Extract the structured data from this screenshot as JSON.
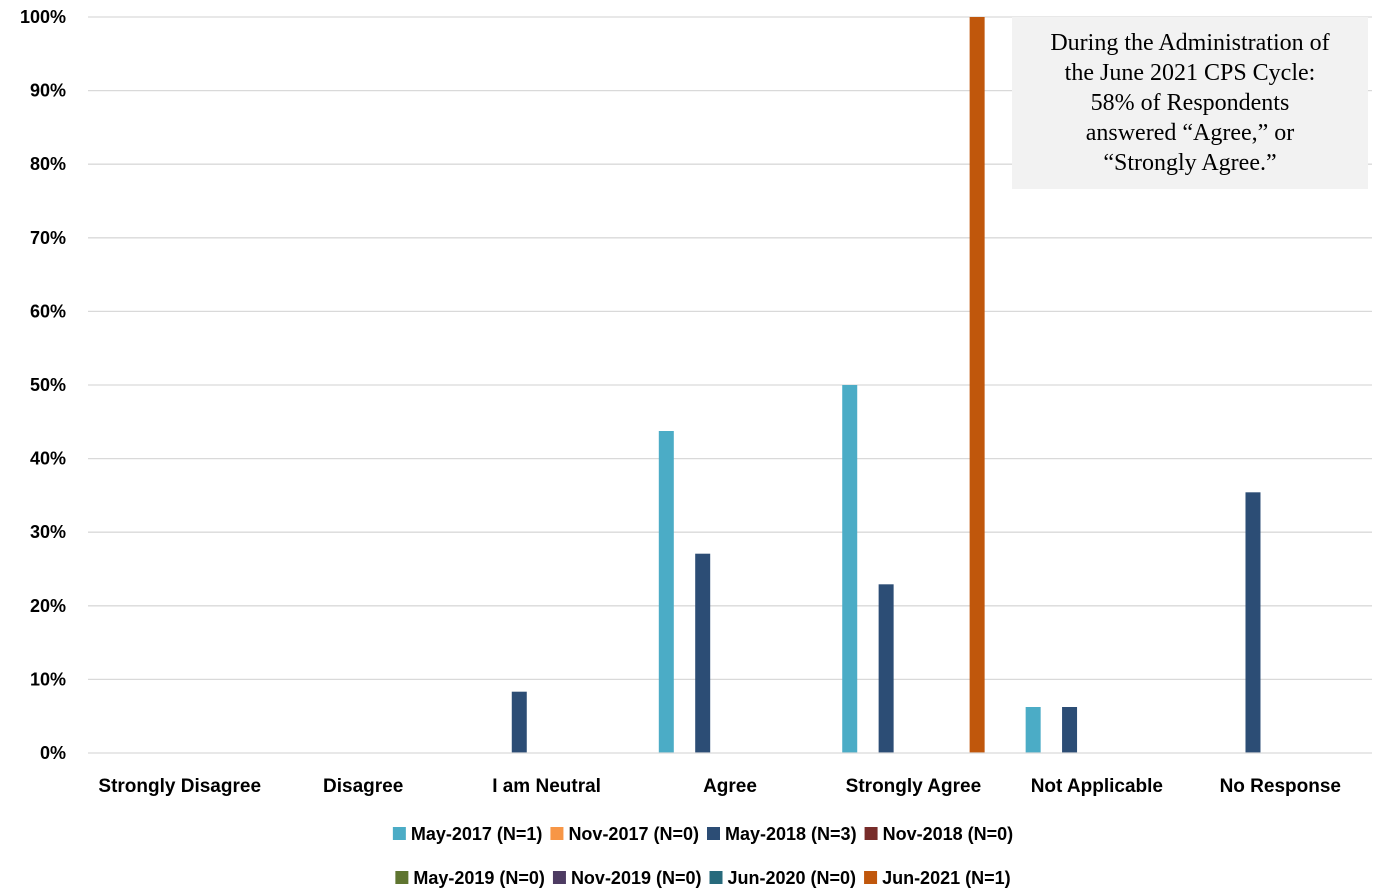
{
  "chart_data": {
    "type": "bar",
    "categories": [
      "Strongly Disagree",
      "Disagree",
      "I am Neutral",
      "Agree",
      "Strongly Agree",
      "Not Applicable",
      "No Response"
    ],
    "y_ticks": [
      "0%",
      "10%",
      "20%",
      "30%",
      "40%",
      "50%",
      "60%",
      "70%",
      "80%",
      "90%",
      "100%"
    ],
    "ylim": [
      0,
      100
    ],
    "y_unit": "%",
    "grid": true,
    "legend_position": "bottom",
    "series": [
      {
        "name": "May-2017 (N=1)",
        "color": "#4bacc6",
        "values": [
          0,
          0,
          0,
          43.75,
          50,
          6.25,
          0
        ]
      },
      {
        "name": "Nov-2017 (N=0)",
        "color": "#f79646",
        "values": [
          0,
          0,
          0,
          0,
          0,
          0,
          0
        ]
      },
      {
        "name": "May-2018 (N=3)",
        "color": "#2c4d75",
        "values": [
          0,
          0,
          8.33,
          27.08,
          22.92,
          6.25,
          35.42
        ]
      },
      {
        "name": "Nov-2018 (N=0)",
        "color": "#772c2a",
        "values": [
          0,
          0,
          0,
          0,
          0,
          0,
          0
        ]
      },
      {
        "name": "May-2019 (N=0)",
        "color": "#5f7530",
        "values": [
          0,
          0,
          0,
          0,
          0,
          0,
          0
        ]
      },
      {
        "name": "Nov-2019 (N=0)",
        "color": "#4d3b62",
        "values": [
          0,
          0,
          0,
          0,
          0,
          0,
          0
        ]
      },
      {
        "name": "Jun-2020 (N=0)",
        "color": "#276a7c",
        "values": [
          0,
          0,
          0,
          0,
          0,
          0,
          0
        ]
      },
      {
        "name": "Jun-2021 (N=1)",
        "color": "#c0570c",
        "values": [
          0,
          0,
          0,
          0,
          100,
          0,
          0
        ]
      }
    ],
    "annotation": {
      "lines": [
        "During the Administration of",
        "the June 2021 CPS Cycle:",
        "58% of Respondents",
        "answered “Agree,” or",
        "“Strongly Agree.”"
      ]
    }
  }
}
